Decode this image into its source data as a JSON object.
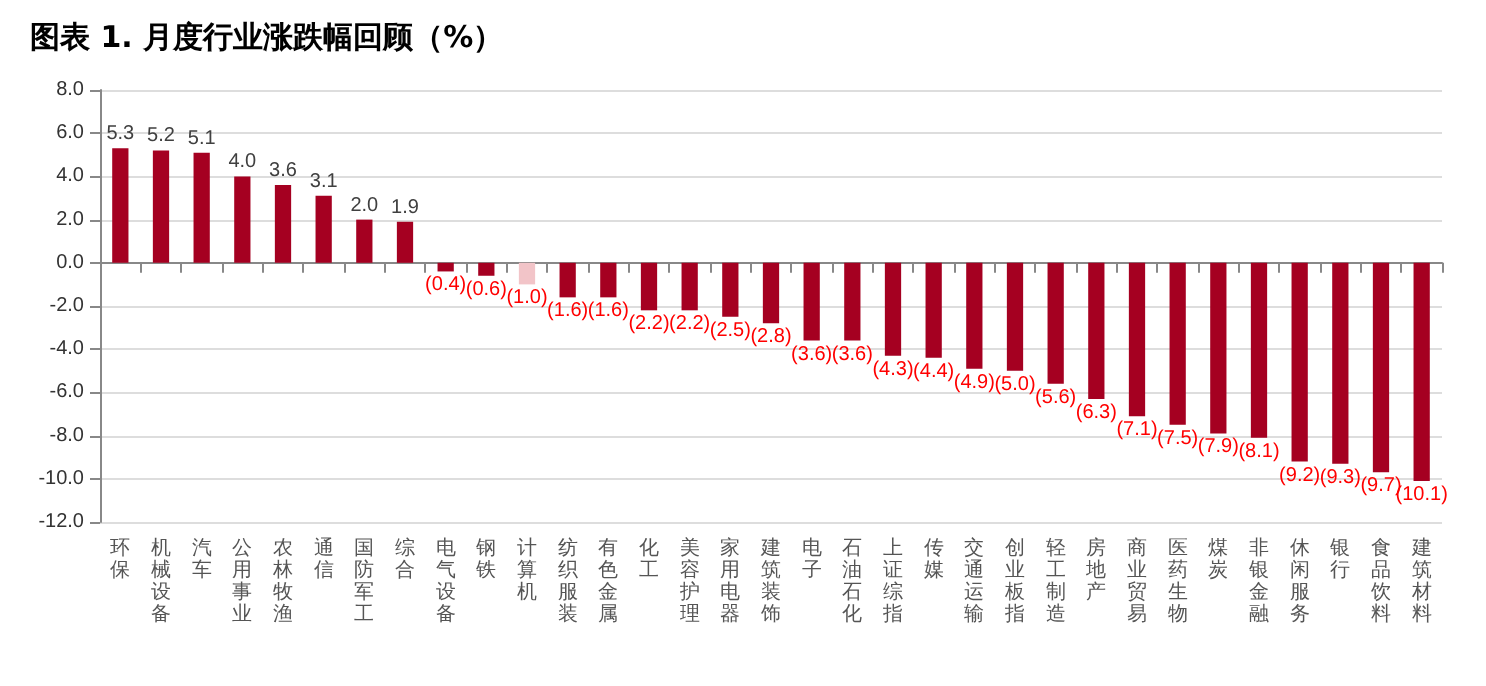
{
  "chart_data": {
    "type": "bar",
    "title": "图表 1. 月度行业涨跌幅回顾（%）",
    "categories": [
      "环保",
      "机械设备",
      "汽车",
      "公用事业",
      "农林牧渔",
      "通信",
      "国防军工",
      "综合",
      "电气设备",
      "钢铁",
      "计算机",
      "纺织服装",
      "有色金属",
      "化工",
      "美容护理",
      "家用电器",
      "建筑装饰",
      "电子",
      "石油石化",
      "上证综指",
      "传媒",
      "交通运输",
      "创业板指",
      "轻工制造",
      "房地产",
      "商业贸易",
      "医药生物",
      "煤炭",
      "非银金融",
      "休闲服务",
      "银行",
      "食品饮料",
      "建筑材料"
    ],
    "values": [
      5.3,
      5.2,
      5.1,
      4.0,
      3.6,
      3.1,
      2.0,
      1.9,
      -0.4,
      -0.6,
      -1.0,
      -1.6,
      -1.6,
      -2.2,
      -2.2,
      -2.5,
      -2.8,
      -3.6,
      -3.6,
      -4.3,
      -4.4,
      -4.9,
      -5.0,
      -5.6,
      -6.3,
      -7.1,
      -7.5,
      -7.9,
      -8.1,
      -9.2,
      -9.3,
      -9.7,
      -10.1
    ],
    "value_labels": [
      "5.3",
      "5.2",
      "5.1",
      "4.0",
      "3.6",
      "3.1",
      "2.0",
      "1.9",
      "(0.4)",
      "(0.6)",
      "(1.0)",
      "(1.6)",
      "(1.6)",
      "(2.2)",
      "(2.2)",
      "(2.5)",
      "(2.8)",
      "(3.6)",
      "(3.6)",
      "(4.3)",
      "(4.4)",
      "(4.9)",
      "(5.0)",
      "(5.6)",
      "(6.3)",
      "(7.1)",
      "(7.5)",
      "(7.9)",
      "(8.1)",
      "(9.2)",
      "(9.3)",
      "(9.7)",
      "(10.1)"
    ],
    "colors": [
      "#a50021",
      "#a50021",
      "#a50021",
      "#a50021",
      "#a50021",
      "#a50021",
      "#a50021",
      "#a50021",
      "#a50021",
      "#a50021",
      "#f2c4c8",
      "#a50021",
      "#a50021",
      "#a50021",
      "#a50021",
      "#a50021",
      "#a50021",
      "#a50021",
      "#a50021",
      "#a50021",
      "#a50021",
      "#a50021",
      "#a50021",
      "#a50021",
      "#a50021",
      "#a50021",
      "#a50021",
      "#a50021",
      "#a50021",
      "#a50021",
      "#a50021",
      "#a50021",
      "#a50021"
    ],
    "ylim": [
      -12,
      8
    ],
    "yticks": [
      {
        "value": -12,
        "label": "-12.0"
      },
      {
        "value": -10,
        "label": "-10.0"
      },
      {
        "value": -8,
        "label": "-8.0"
      },
      {
        "value": -6,
        "label": "-6.0"
      },
      {
        "value": -4,
        "label": "-4.0"
      },
      {
        "value": -2,
        "label": "-2.0"
      },
      {
        "value": 0,
        "label": "0.0"
      },
      {
        "value": 2,
        "label": "2.0"
      },
      {
        "value": 4,
        "label": "4.0"
      },
      {
        "value": 6,
        "label": "6.0"
      },
      {
        "value": 8,
        "label": "8.0"
      }
    ],
    "grid": "y"
  }
}
